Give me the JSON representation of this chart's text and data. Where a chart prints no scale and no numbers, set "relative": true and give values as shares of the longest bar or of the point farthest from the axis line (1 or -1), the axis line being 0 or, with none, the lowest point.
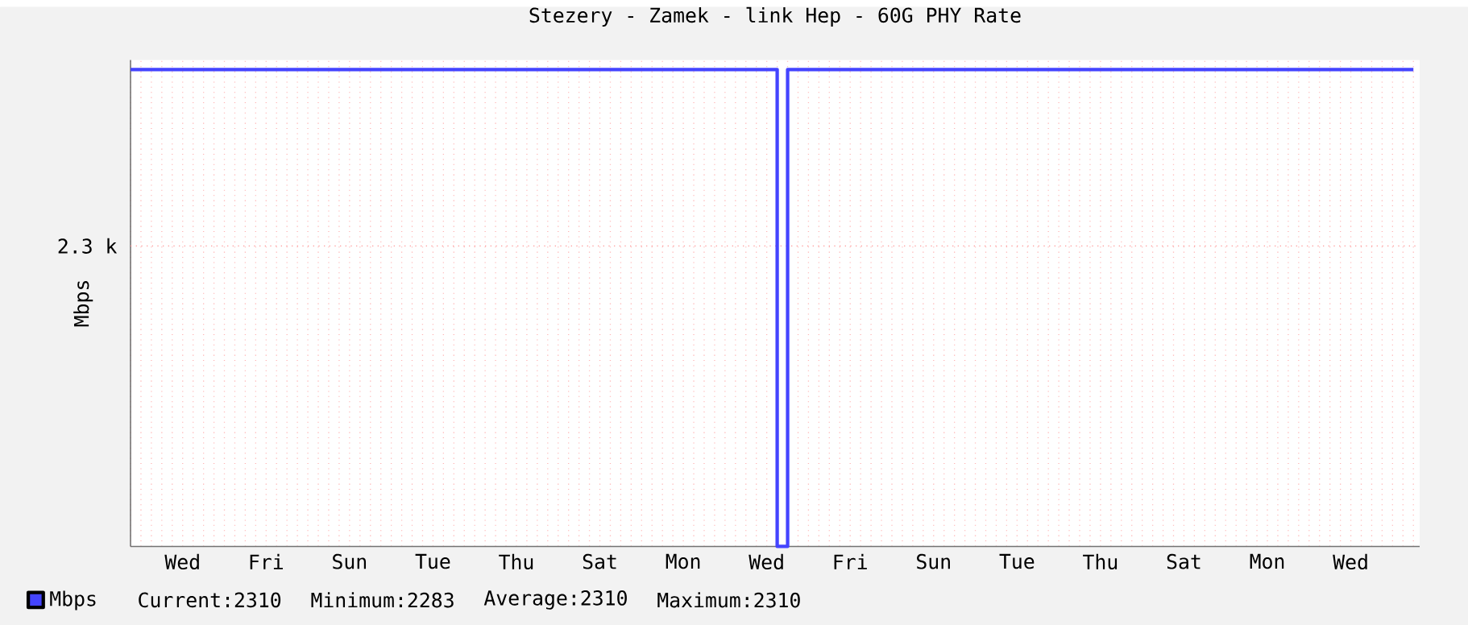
{
  "chart_data": {
    "type": "step",
    "title": "Stezery - Zamek - link Hep  - 60G PHY Rate",
    "ylabel": "Mbps",
    "relative": true,
    "categories": [
      null,
      null,
      null,
      null,
      null,
      "Wed",
      null,
      null,
      null,
      null,
      null,
      null,
      null,
      "Fri",
      null,
      null,
      null,
      null,
      null,
      null,
      null,
      "Sun",
      null,
      null,
      null,
      null,
      null,
      null,
      null,
      "Tue",
      null,
      null,
      null,
      null,
      null,
      null,
      null,
      "Thu",
      null,
      null,
      null,
      null,
      null,
      null,
      null,
      "Sat",
      null,
      null,
      null,
      null,
      null,
      null,
      null,
      "Mon",
      null,
      null,
      null,
      null,
      null,
      null,
      null,
      "Wed",
      null,
      null,
      null,
      null,
      null,
      null,
      null,
      "Fri",
      null,
      null,
      null,
      null,
      null,
      null,
      null,
      "Sun",
      null,
      null,
      null,
      null,
      null,
      null,
      null,
      "Tue",
      null,
      null,
      null,
      null,
      null,
      null,
      null,
      "Thu",
      null,
      null,
      null,
      null,
      null,
      null,
      null,
      "Sat",
      null,
      null,
      null,
      null,
      null,
      null,
      null,
      "Mon",
      null,
      null,
      null,
      null,
      null,
      null,
      null,
      "Wed",
      null,
      null,
      null,
      null,
      null,
      null
    ],
    "series": [
      {
        "name": "Mbps",
        "color": "#4444ff",
        "values": [
          1,
          1,
          1,
          1,
          1,
          1,
          1,
          1,
          1,
          1,
          1,
          1,
          1,
          1,
          1,
          1,
          1,
          1,
          1,
          1,
          1,
          1,
          1,
          1,
          1,
          1,
          1,
          1,
          1,
          1,
          1,
          1,
          1,
          1,
          1,
          1,
          1,
          1,
          1,
          1,
          1,
          1,
          1,
          1,
          1,
          1,
          1,
          1,
          1,
          1,
          1,
          1,
          1,
          1,
          1,
          1,
          1,
          1,
          1,
          1,
          1,
          1,
          0,
          1,
          1,
          1,
          1,
          1,
          1,
          1,
          1,
          1,
          1,
          1,
          1,
          1,
          1,
          1,
          1,
          1,
          1,
          1,
          1,
          1,
          1,
          1,
          1,
          1,
          1,
          1,
          1,
          1,
          1,
          1,
          1,
          1,
          1,
          1,
          1,
          1,
          1,
          1,
          1,
          1,
          1,
          1,
          1,
          1,
          1,
          1,
          1,
          1,
          1,
          1,
          1,
          1,
          1,
          1,
          1,
          1,
          1,
          1,
          1,
          1
        ]
      }
    ],
    "ref_lines": [
      {
        "axis": "y",
        "value": 0.63,
        "label": "2.3 k",
        "color": "#ff9999",
        "line_style": "dotted"
      }
    ],
    "grid": "x",
    "legend": "bottom left",
    "annotations": [
      "Current:2310",
      "Minimum:2283",
      "Average:2310",
      "Maximum:2310"
    ]
  }
}
